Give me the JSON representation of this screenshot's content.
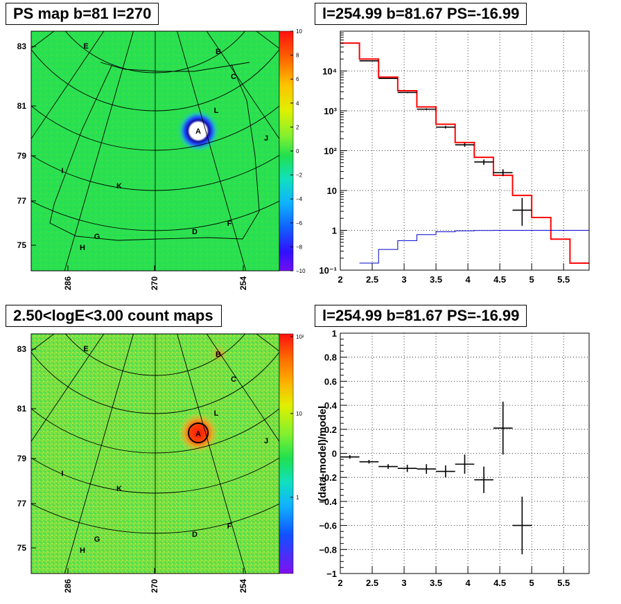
{
  "panels": {
    "ps_map": {
      "title": "PS map b=81 l=270"
    },
    "spectrum": {
      "title": "l=254.99 b=81.67 PS=-16.99"
    },
    "count_map": {
      "title": "2.50<logE<3.00 count maps"
    },
    "residual": {
      "title": "l=254.99 b=81.67 PS=-16.99"
    }
  },
  "chart_data": [
    {
      "id": "ps_map",
      "type": "heatmap",
      "title": "PS map b=81 l=270",
      "y_ticks": [
        "83",
        "81",
        "79",
        "77",
        "75"
      ],
      "x_ticks": [
        "286",
        "270",
        "254"
      ],
      "colorbar_ticks": [
        "10",
        "8",
        "6",
        "4",
        "2",
        "0",
        "−2",
        "−4",
        "−6",
        "−8",
        "−10"
      ],
      "zlim": [
        -10,
        10
      ],
      "source_labels": [
        "A",
        "B",
        "C",
        "D",
        "E",
        "F",
        "G",
        "H",
        "I",
        "J",
        "K",
        "L"
      ],
      "colors": {
        "background": "#28e050",
        "source_A": "#ffffff",
        "dip": "#2040e0"
      }
    },
    {
      "id": "count_map",
      "type": "heatmap",
      "title": "2.50<logE<3.00 count maps",
      "y_ticks": [
        "83",
        "81",
        "79",
        "77",
        "75"
      ],
      "x_ticks": [
        "286",
        "270",
        "254"
      ],
      "colorbar_ticks": [
        "10²",
        "10",
        "1"
      ],
      "source_labels": [
        "A",
        "B",
        "C",
        "D",
        "E",
        "F",
        "G",
        "H",
        "I",
        "J",
        "K",
        "L"
      ],
      "colors": {
        "background": "#6ee040",
        "source_A": "#ff2a00"
      }
    },
    {
      "id": "spectrum",
      "type": "line",
      "title": "l=254.99 b=81.67 PS=-16.99",
      "xlim": [
        2,
        5.9
      ],
      "ylim": [
        0.1,
        100000
      ],
      "yscale": "log",
      "grid": true,
      "x_ticks": [
        "2",
        "2.5",
        "3",
        "3.5",
        "4",
        "4.5",
        "5",
        "5.5"
      ],
      "y_ticks": [
        "10⁻¹",
        "1",
        "10",
        "10²",
        "10³",
        "10⁴"
      ],
      "series": [
        {
          "style": "step",
          "color": "#ff0000",
          "edges": [
            2.0,
            2.3,
            2.6,
            2.9,
            3.2,
            3.5,
            3.8,
            4.1,
            4.4,
            4.7,
            5.0,
            5.3,
            5.6,
            5.9
          ],
          "values": [
            50000,
            20000,
            7000,
            3200,
            1250,
            460,
            160,
            68,
            24,
            7.5,
            2.1,
            0.6,
            0.15
          ]
        },
        {
          "style": "step",
          "color": "#0000cc",
          "edges": [
            2.3,
            2.6,
            2.9,
            3.2,
            3.5,
            3.8,
            4.1,
            4.4,
            4.7,
            5.0,
            5.3,
            5.6,
            5.9
          ],
          "values": [
            0.15,
            0.33,
            0.55,
            0.78,
            0.92,
            0.97,
            0.99,
            1.0,
            1.0,
            1.0,
            1.0,
            1.0
          ]
        },
        {
          "style": "errorbar",
          "color": "#000000",
          "points": [
            {
              "x": 2.45,
              "dx": 0.15,
              "y": 18000,
              "ylo": 17500,
              "yhi": 18500
            },
            {
              "x": 2.75,
              "dx": 0.15,
              "y": 6500,
              "ylo": 6300,
              "yhi": 6700
            },
            {
              "x": 3.05,
              "dx": 0.15,
              "y": 2900,
              "ylo": 2800,
              "yhi": 3000
            },
            {
              "x": 3.35,
              "dx": 0.15,
              "y": 1100,
              "ylo": 1050,
              "yhi": 1150
            },
            {
              "x": 3.65,
              "dx": 0.15,
              "y": 390,
              "ylo": 360,
              "yhi": 420
            },
            {
              "x": 3.95,
              "dx": 0.15,
              "y": 140,
              "ylo": 125,
              "yhi": 155
            },
            {
              "x": 4.25,
              "dx": 0.15,
              "y": 52,
              "ylo": 44,
              "yhi": 60
            },
            {
              "x": 4.55,
              "dx": 0.15,
              "y": 28,
              "ylo": 23,
              "yhi": 34
            },
            {
              "x": 4.85,
              "dx": 0.15,
              "y": 3.2,
              "ylo": 1.3,
              "yhi": 6.5
            }
          ]
        }
      ]
    },
    {
      "id": "residual",
      "type": "scatter",
      "title": "l=254.99 b=81.67 PS=-16.99",
      "ylabel": "(data-model)/model",
      "xlim": [
        2,
        5.9
      ],
      "ylim": [
        -1,
        1
      ],
      "grid": true,
      "x_ticks": [
        "2",
        "2.5",
        "3",
        "3.5",
        "4",
        "4.5",
        "5",
        "5.5"
      ],
      "y_ticks": [
        "−1",
        "−0.8",
        "−0.6",
        "−0.4",
        "−0.2",
        "0",
        "0.2",
        "0.4",
        "0.6",
        "0.8",
        "1"
      ],
      "points": [
        {
          "x": 2.15,
          "dx": 0.15,
          "y": -0.03,
          "dy": 0.015
        },
        {
          "x": 2.45,
          "dx": 0.15,
          "y": -0.07,
          "dy": 0.015
        },
        {
          "x": 2.75,
          "dx": 0.15,
          "y": -0.11,
          "dy": 0.02
        },
        {
          "x": 3.05,
          "dx": 0.15,
          "y": -0.125,
          "dy": 0.03
        },
        {
          "x": 3.35,
          "dx": 0.15,
          "y": -0.13,
          "dy": 0.04
        },
        {
          "x": 3.65,
          "dx": 0.15,
          "y": -0.15,
          "dy": 0.05
        },
        {
          "x": 3.95,
          "dx": 0.15,
          "y": -0.09,
          "dy": 0.08
        },
        {
          "x": 4.25,
          "dx": 0.15,
          "y": -0.22,
          "dy": 0.11
        },
        {
          "x": 4.55,
          "dx": 0.15,
          "y": 0.21,
          "dy": 0.22
        },
        {
          "x": 4.85,
          "dx": 0.15,
          "y": -0.6,
          "dy": 0.24
        }
      ]
    }
  ]
}
